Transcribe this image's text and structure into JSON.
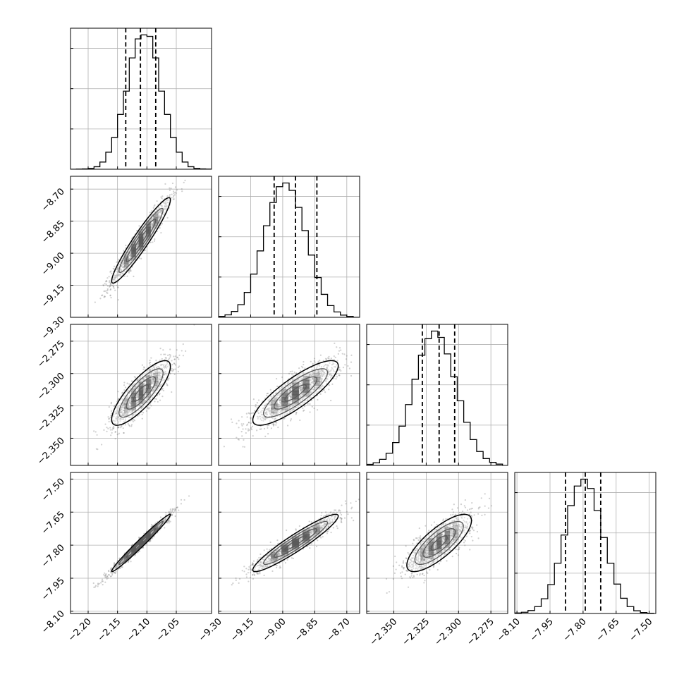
{
  "chart_data": {
    "type": "corner",
    "n_params": 4,
    "colors": {
      "frame": "#000000",
      "grid": "#b0b0b0",
      "density": "#000000",
      "points": "#777777"
    },
    "params": [
      {
        "name": "",
        "range": [
          -2.23,
          -1.99
        ],
        "mean": -2.11,
        "sd": 0.025,
        "quantiles": [
          -2.136,
          -2.111,
          -2.085
        ],
        "ticks": [
          -2.2,
          -2.15,
          -2.1,
          -2.05
        ],
        "tick_labels": [
          "−2.20",
          "−2.15",
          "−2.10",
          "−2.05"
        ]
      },
      {
        "name": "",
        "range": [
          -9.3,
          -8.64
        ],
        "mean": -8.94,
        "sd": 0.1,
        "quantiles": [
          -9.04,
          -8.94,
          -8.84
        ],
        "ticks": [
          -9.3,
          -9.15,
          -9.0,
          -8.85,
          -8.7
        ],
        "tick_labels": [
          "−9.30",
          "−9.15",
          "−9.00",
          "−8.85",
          "−8.70"
        ]
      },
      {
        "name": "",
        "range": [
          -2.371,
          -2.262
        ],
        "mean": -2.315,
        "sd": 0.0125,
        "quantiles": [
          -2.328,
          -2.315,
          -2.303
        ],
        "ticks": [
          -2.35,
          -2.325,
          -2.3,
          -2.275
        ],
        "tick_labels": [
          "−2.350",
          "−2.325",
          "−2.300",
          "−2.275"
        ]
      },
      {
        "name": "",
        "range": [
          -8.11,
          -7.47
        ],
        "mean": -7.79,
        "sd": 0.065,
        "quantiles": [
          -7.88,
          -7.79,
          -7.72
        ],
        "ticks": [
          -8.1,
          -7.95,
          -7.8,
          -7.65,
          -7.5
        ],
        "tick_labels": [
          "−8.10",
          "−7.95",
          "−7.80",
          "−7.65",
          "−7.50"
        ]
      }
    ],
    "histograms": [
      {
        "param": 0,
        "bin_edges": [
          -2.23,
          -2.22,
          -2.21,
          -2.2,
          -2.19,
          -2.18,
          -2.17,
          -2.16,
          -2.15,
          -2.14,
          -2.13,
          -2.12,
          -2.11,
          -2.1,
          -2.09,
          -2.08,
          -2.07,
          -2.06,
          -2.05,
          -2.04,
          -2.03,
          -2.02,
          -2.01,
          -2.0,
          -1.99
        ],
        "counts": [
          0,
          1,
          2,
          5,
          14,
          40,
          95,
          177,
          305,
          435,
          620,
          726,
          748,
          740,
          620,
          435,
          305,
          177,
          95,
          40,
          14,
          5,
          2,
          1
        ]
      },
      {
        "param": 1,
        "bin_edges": [
          -9.3,
          -9.27,
          -9.24,
          -9.21,
          -9.18,
          -9.15,
          -9.12,
          -9.09,
          -9.06,
          -9.03,
          -9.0,
          -8.97,
          -8.94,
          -8.91,
          -8.88,
          -8.85,
          -8.82,
          -8.79,
          -8.76,
          -8.73,
          -8.7,
          -8.67,
          -8.64
        ],
        "counts": [
          4,
          10,
          24,
          52,
          102,
          177,
          272,
          375,
          470,
          535,
          550,
          520,
          450,
          355,
          255,
          163,
          94,
          48,
          22,
          9,
          4,
          0
        ]
      },
      {
        "param": 2,
        "bin_edges": [
          -2.371,
          -2.366,
          -2.361,
          -2.356,
          -2.351,
          -2.346,
          -2.341,
          -2.336,
          -2.331,
          -2.326,
          -2.321,
          -2.316,
          -2.311,
          -2.306,
          -2.301,
          -2.296,
          -2.291,
          -2.286,
          -2.281,
          -2.276,
          -2.271,
          -2.266
        ],
        "counts": [
          4,
          10,
          24,
          48,
          90,
          155,
          240,
          340,
          435,
          500,
          530,
          505,
          440,
          350,
          255,
          170,
          102,
          55,
          27,
          12,
          5
        ]
      },
      {
        "param": 3,
        "bin_edges": [
          -8.11,
          -8.08,
          -8.05,
          -8.02,
          -7.99,
          -7.96,
          -7.93,
          -7.9,
          -7.87,
          -7.84,
          -7.81,
          -7.78,
          -7.75,
          -7.72,
          -7.69,
          -7.66,
          -7.63,
          -7.6,
          -7.57,
          -7.54,
          -7.51,
          -7.48
        ],
        "counts": [
          2,
          5,
          12,
          28,
          60,
          118,
          205,
          320,
          440,
          520,
          548,
          510,
          420,
          310,
          205,
          120,
          62,
          28,
          11,
          4,
          1
        ]
      }
    ],
    "correlations": [
      {
        "x": 0,
        "y": 1,
        "r": 0.95
      },
      {
        "x": 0,
        "y": 2,
        "r": 0.82
      },
      {
        "x": 1,
        "y": 2,
        "r": 0.84
      },
      {
        "x": 0,
        "y": 3,
        "r": 0.985
      },
      {
        "x": 1,
        "y": 3,
        "r": 0.94
      },
      {
        "x": 2,
        "y": 3,
        "r": 0.78
      }
    ],
    "contour_levels_sigma": [
      0.5,
      1.0,
      1.5,
      2.0
    ],
    "grid": true
  }
}
